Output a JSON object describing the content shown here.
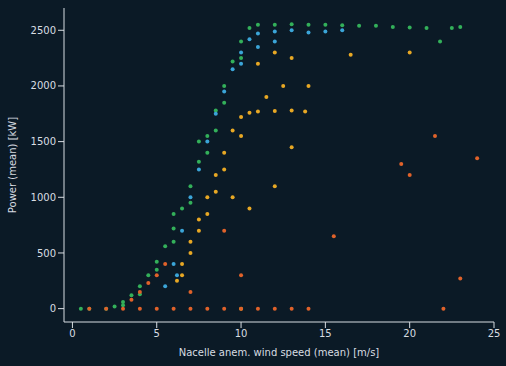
{
  "chart_data": {
    "type": "scatter",
    "x_label": "Nacelle anem. wind speed (mean) [m/s]",
    "y_label": "Power (mean) [kW]",
    "xlim": [
      -0.5,
      25
    ],
    "ylim": [
      -120,
      2700
    ],
    "xticks": [
      0,
      5,
      10,
      15,
      20,
      25
    ],
    "yticks": [
      0,
      500,
      1000,
      1500,
      2000,
      2500
    ],
    "grid": false,
    "series": [
      {
        "color": "#33b05a",
        "marker": "circle",
        "values": [
          [
            0.5,
            0
          ],
          [
            1,
            0
          ],
          [
            2,
            0
          ],
          [
            2.5,
            20
          ],
          [
            3,
            60
          ],
          [
            3.5,
            120
          ],
          [
            4,
            200
          ],
          [
            4.5,
            300
          ],
          [
            5,
            420
          ],
          [
            5.5,
            560
          ],
          [
            6,
            720
          ],
          [
            6.5,
            900
          ],
          [
            7,
            1100
          ],
          [
            7.5,
            1320
          ],
          [
            8,
            1550
          ],
          [
            8.5,
            1780
          ],
          [
            9,
            2000
          ],
          [
            9.5,
            2220
          ],
          [
            10,
            2400
          ],
          [
            10.5,
            2520
          ],
          [
            11,
            2550
          ],
          [
            12,
            2550
          ],
          [
            13,
            2555
          ],
          [
            14,
            2550
          ],
          [
            15,
            2550
          ],
          [
            16,
            2545
          ],
          [
            17,
            2540
          ],
          [
            18,
            2540
          ],
          [
            19,
            2530
          ],
          [
            20,
            2525
          ],
          [
            21,
            2520
          ],
          [
            22.5,
            2520
          ],
          [
            23,
            2530
          ],
          [
            3,
            30
          ],
          [
            4,
            130
          ],
          [
            5,
            350
          ],
          [
            6,
            600
          ],
          [
            7,
            950
          ],
          [
            8,
            1400
          ],
          [
            9,
            1850
          ],
          [
            10,
            2250
          ],
          [
            6,
            850
          ],
          [
            7.5,
            1500
          ],
          [
            8.5,
            1600
          ],
          [
            21.8,
            2400
          ]
        ]
      },
      {
        "color": "#3ba5d8",
        "marker": "circle",
        "values": [
          [
            5.5,
            200
          ],
          [
            6,
            400
          ],
          [
            6.2,
            300
          ],
          [
            6.5,
            700
          ],
          [
            7,
            1000
          ],
          [
            7.5,
            1250
          ],
          [
            8,
            1500
          ],
          [
            8.5,
            1750
          ],
          [
            9,
            1950
          ],
          [
            9.5,
            2150
          ],
          [
            10,
            2300
          ],
          [
            10.5,
            2420
          ],
          [
            11,
            2470
          ],
          [
            12,
            2490
          ],
          [
            13,
            2500
          ],
          [
            14,
            2480
          ],
          [
            15,
            2490
          ],
          [
            16,
            2500
          ],
          [
            10,
            2200
          ],
          [
            11,
            2350
          ],
          [
            12,
            2400
          ]
        ]
      },
      {
        "color": "#e8a824",
        "marker": "circle",
        "values": [
          [
            6.2,
            250
          ],
          [
            6.5,
            400
          ],
          [
            7,
            600
          ],
          [
            7.5,
            800
          ],
          [
            8,
            1000
          ],
          [
            8.5,
            1200
          ],
          [
            9,
            1400
          ],
          [
            9.5,
            1600
          ],
          [
            10,
            1720
          ],
          [
            10.5,
            1760
          ],
          [
            11,
            1770
          ],
          [
            12,
            1775
          ],
          [
            13,
            1780
          ],
          [
            13.8,
            1770
          ],
          [
            7,
            500
          ],
          [
            8,
            850
          ],
          [
            9,
            1250
          ],
          [
            10,
            1550
          ],
          [
            11,
            2200
          ],
          [
            12,
            2300
          ],
          [
            12.5,
            2000
          ],
          [
            13,
            2250
          ],
          [
            11.5,
            1900
          ],
          [
            12,
            1100
          ],
          [
            10.5,
            900
          ],
          [
            9.5,
            1000
          ],
          [
            13,
            1450
          ],
          [
            14,
            2000
          ],
          [
            16.5,
            2280
          ],
          [
            20,
            2300
          ],
          [
            10,
            0
          ],
          [
            6.5,
            300
          ],
          [
            7.5,
            700
          ],
          [
            8.5,
            1050
          ]
        ]
      },
      {
        "color": "#e0622a",
        "marker": "circle",
        "values": [
          [
            1,
            0
          ],
          [
            2,
            0
          ],
          [
            3,
            0
          ],
          [
            4,
            0
          ],
          [
            5,
            0
          ],
          [
            6,
            0
          ],
          [
            7,
            0
          ],
          [
            8,
            0
          ],
          [
            9,
            0
          ],
          [
            10,
            0
          ],
          [
            11,
            0
          ],
          [
            12,
            0
          ],
          [
            13,
            0
          ],
          [
            14,
            0
          ],
          [
            3.5,
            80
          ],
          [
            4,
            150
          ],
          [
            4.5,
            230
          ],
          [
            5,
            300
          ],
          [
            5.5,
            400
          ],
          [
            9,
            700
          ],
          [
            7,
            150
          ],
          [
            10,
            300
          ],
          [
            15.5,
            650
          ],
          [
            19.5,
            1300
          ],
          [
            20,
            1200
          ],
          [
            21.5,
            1550
          ],
          [
            24,
            1350
          ],
          [
            23,
            270
          ],
          [
            22,
            0
          ]
        ]
      }
    ]
  }
}
